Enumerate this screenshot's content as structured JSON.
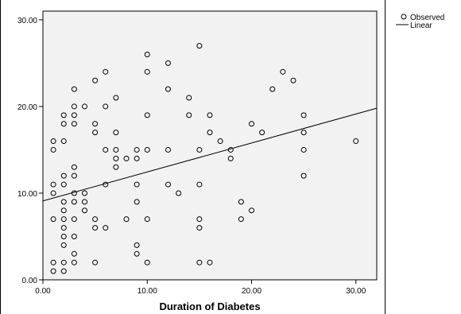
{
  "chart_data": {
    "type": "scatter",
    "title": "",
    "xlabel": "Duration of Diabetes",
    "ylabel": "",
    "xlim": [
      0,
      32
    ],
    "ylim": [
      0,
      31
    ],
    "xticks": [
      0,
      10,
      20,
      30
    ],
    "yticks": [
      0,
      10,
      20,
      30
    ],
    "xtick_labels": [
      "0.00",
      "10.00",
      "20.00",
      "30.00"
    ],
    "ytick_labels": [
      "0.00",
      "10.00",
      "20.00",
      "30.00"
    ],
    "grid": false,
    "legend_position": "top-right outside",
    "series": [
      {
        "name": "Observed",
        "marker": "open-circle",
        "color": "#000000",
        "points": [
          [
            1,
            16
          ],
          [
            1,
            15
          ],
          [
            1,
            11
          ],
          [
            1,
            10
          ],
          [
            1,
            7
          ],
          [
            1,
            2
          ],
          [
            1,
            1
          ],
          [
            2,
            19
          ],
          [
            2,
            18
          ],
          [
            2,
            16
          ],
          [
            2,
            12
          ],
          [
            2,
            11
          ],
          [
            2,
            9
          ],
          [
            2,
            8
          ],
          [
            2,
            7
          ],
          [
            2,
            6
          ],
          [
            2,
            5
          ],
          [
            2,
            4
          ],
          [
            2,
            2
          ],
          [
            2,
            1
          ],
          [
            3,
            22
          ],
          [
            3,
            20
          ],
          [
            3,
            19
          ],
          [
            3,
            18
          ],
          [
            3,
            13
          ],
          [
            3,
            12
          ],
          [
            3,
            10
          ],
          [
            3,
            9
          ],
          [
            3,
            7
          ],
          [
            3,
            5
          ],
          [
            3,
            3
          ],
          [
            3,
            2
          ],
          [
            4,
            20
          ],
          [
            4,
            10
          ],
          [
            4,
            9
          ],
          [
            4,
            8
          ],
          [
            5,
            23
          ],
          [
            5,
            18
          ],
          [
            5,
            17
          ],
          [
            5,
            7
          ],
          [
            5,
            6
          ],
          [
            5,
            2
          ],
          [
            6,
            24
          ],
          [
            6,
            20
          ],
          [
            6,
            15
          ],
          [
            6,
            11
          ],
          [
            6,
            6
          ],
          [
            7,
            21
          ],
          [
            7,
            17
          ],
          [
            7,
            15
          ],
          [
            7,
            14
          ],
          [
            7,
            13
          ],
          [
            8,
            14
          ],
          [
            8,
            7
          ],
          [
            9,
            15
          ],
          [
            9,
            14
          ],
          [
            9,
            11
          ],
          [
            9,
            9
          ],
          [
            9,
            4
          ],
          [
            9,
            3
          ],
          [
            10,
            26
          ],
          [
            10,
            24
          ],
          [
            10,
            19
          ],
          [
            10,
            15
          ],
          [
            10,
            7
          ],
          [
            10,
            2
          ],
          [
            12,
            25
          ],
          [
            12,
            22
          ],
          [
            12,
            15
          ],
          [
            12,
            11
          ],
          [
            13,
            10
          ],
          [
            14,
            21
          ],
          [
            14,
            19
          ],
          [
            15,
            27
          ],
          [
            15,
            15
          ],
          [
            15,
            11
          ],
          [
            15,
            7
          ],
          [
            15,
            6
          ],
          [
            15,
            2
          ],
          [
            16,
            19
          ],
          [
            16,
            17
          ],
          [
            16,
            2
          ],
          [
            17,
            16
          ],
          [
            18,
            15
          ],
          [
            18,
            14
          ],
          [
            19,
            9
          ],
          [
            19,
            7
          ],
          [
            20,
            18
          ],
          [
            20,
            8
          ],
          [
            21,
            17
          ],
          [
            22,
            22
          ],
          [
            23,
            24
          ],
          [
            24,
            23
          ],
          [
            25,
            19
          ],
          [
            25,
            17
          ],
          [
            25,
            15
          ],
          [
            25,
            12
          ],
          [
            30,
            16
          ]
        ]
      },
      {
        "name": "Linear",
        "type": "line",
        "color": "#000000",
        "x": [
          0,
          32
        ],
        "y": [
          9.1,
          19.8
        ]
      }
    ]
  }
}
